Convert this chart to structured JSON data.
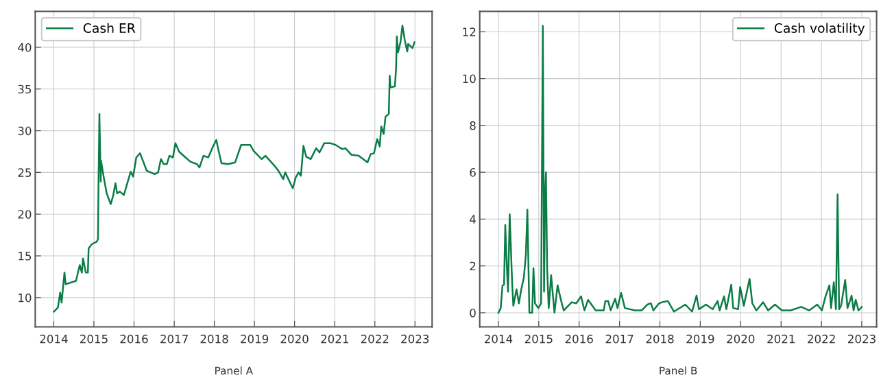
{
  "chart_data": [
    {
      "type": "line",
      "xlabel": "Panel A",
      "legend": "top left",
      "grid": true,
      "xlim": [
        "2013-07-16",
        "2023-06-06"
      ],
      "ylim": [
        6.5,
        44.3
      ],
      "xticks": [
        "2014",
        "2015",
        "2016",
        "2017",
        "2018",
        "2019",
        "2020",
        "2021",
        "2022",
        "2023"
      ],
      "yticks": [
        10,
        15,
        20,
        25,
        30,
        35,
        40
      ],
      "series": [
        {
          "name": "Cash ER",
          "color": "#0b7c46",
          "x": [
            "2014-01-01",
            "2014-02-07",
            "2014-02-28",
            "2014-03-13",
            "2014-04-08",
            "2014-04-19",
            "2014-07-22",
            "2014-08-25",
            "2014-09-13",
            "2014-09-24",
            "2014-10-19",
            "2014-11-07",
            "2014-11-14",
            "2014-12-13",
            "2015-01-26",
            "2015-02-07",
            "2015-02-12",
            "2015-02-20",
            "2015-03-04",
            "2015-03-07",
            "2015-03-29",
            "2015-04-27",
            "2015-06-03",
            "2015-06-25",
            "2015-07-16",
            "2015-07-31",
            "2015-08-25",
            "2015-10-01",
            "2015-11-14",
            "2015-12-02",
            "2015-12-24",
            "2016-01-22",
            "2016-02-25",
            "2016-04-26",
            "2016-07-07",
            "2016-08-07",
            "2016-09-02",
            "2016-09-27",
            "2016-10-26",
            "2016-11-18",
            "2016-12-20",
            "2017-01-12",
            "2017-02-14",
            "2017-04-13",
            "2017-05-27",
            "2017-07-27",
            "2017-08-19",
            "2017-09-24",
            "2017-11-07",
            "2017-12-16",
            "2018-01-19",
            "2018-02-07",
            "2018-03-07",
            "2018-05-08",
            "2018-07-09",
            "2018-09-02",
            "2018-11-24",
            "2018-12-24",
            "2019-03-07",
            "2019-04-12",
            "2019-07-09",
            "2019-08-07",
            "2019-09-20",
            "2019-10-08",
            "2019-12-16",
            "2020-01-12",
            "2020-02-07",
            "2020-02-28",
            "2020-03-22",
            "2020-04-16",
            "2020-05-27",
            "2020-07-16",
            "2020-08-15",
            "2020-09-27",
            "2020-11-24",
            "2021-01-08",
            "2021-03-10",
            "2021-04-08",
            "2021-06-03",
            "2021-08-07",
            "2021-10-26",
            "2021-11-24",
            "2021-12-24",
            "2022-01-22",
            "2022-02-14",
            "2022-02-28",
            "2022-03-22",
            "2022-04-08",
            "2022-05-08",
            "2022-05-16",
            "2022-05-23",
            "2022-07-02",
            "2022-07-13",
            "2022-07-20",
            "2022-07-31",
            "2022-08-22",
            "2022-09-09",
            "2022-10-01",
            "2022-10-23",
            "2022-10-31",
            "2022-12-09",
            "2022-12-28"
          ],
          "values": [
            8.3,
            8.8,
            10.6,
            9.4,
            13.0,
            11.6,
            12.0,
            13.9,
            13.0,
            14.7,
            13.0,
            13.0,
            15.9,
            16.4,
            16.7,
            17.0,
            23.8,
            32.0,
            23.9,
            26.4,
            24.6,
            22.5,
            21.2,
            22.2,
            23.7,
            22.5,
            22.7,
            22.3,
            24.3,
            25.1,
            24.5,
            26.8,
            27.3,
            25.2,
            24.8,
            25.0,
            26.6,
            26.0,
            26.0,
            27.0,
            26.8,
            28.5,
            27.5,
            26.8,
            26.3,
            26.0,
            25.6,
            27.0,
            26.8,
            28.0,
            28.9,
            27.7,
            26.1,
            26.0,
            26.2,
            28.3,
            28.3,
            27.6,
            26.6,
            27.0,
            25.7,
            25.2,
            24.2,
            25.0,
            23.1,
            24.4,
            25.0,
            24.6,
            28.2,
            26.9,
            26.6,
            27.9,
            27.4,
            28.5,
            28.5,
            28.3,
            27.8,
            27.9,
            27.1,
            27.0,
            26.2,
            27.2,
            27.3,
            29.0,
            28.1,
            30.5,
            29.6,
            31.7,
            32.0,
            36.6,
            35.2,
            35.3,
            37.4,
            41.3,
            39.4,
            40.6,
            42.6,
            40.8,
            39.5,
            40.4,
            39.9,
            40.6
          ]
        }
      ]
    },
    {
      "type": "line",
      "xlabel": "Panel B",
      "legend": "top right",
      "grid": true,
      "xlim": [
        "2013-07-16",
        "2023-05-15"
      ],
      "ylim": [
        -0.6,
        12.87
      ],
      "xticks": [
        "2014",
        "2015",
        "2016",
        "2017",
        "2018",
        "2019",
        "2020",
        "2021",
        "2022",
        "2023"
      ],
      "yticks": [
        0,
        2,
        4,
        6,
        8,
        10,
        12
      ],
      "series": [
        {
          "name": "Cash volatility",
          "color": "#0b7c46",
          "x": [
            "2014-01-01",
            "2014-01-22",
            "2014-02-07",
            "2014-02-21",
            "2014-03-04",
            "2014-03-18",
            "2014-03-29",
            "2014-04-13",
            "2014-05-05",
            "2014-05-16",
            "2014-06-14",
            "2014-07-05",
            "2014-07-27",
            "2014-08-19",
            "2014-09-06",
            "2014-09-20",
            "2014-10-08",
            "2014-11-03",
            "2014-11-14",
            "2014-11-28",
            "2014-12-28",
            "2015-01-22",
            "2015-02-07",
            "2015-02-18",
            "2015-02-28",
            "2015-03-07",
            "2015-03-18",
            "2015-04-01",
            "2015-04-23",
            "2015-05-23",
            "2015-06-20",
            "2015-07-23",
            "2015-08-15",
            "2015-10-26",
            "2015-12-06",
            "2016-01-19",
            "2016-02-18",
            "2016-03-22",
            "2016-05-30",
            "2016-08-11",
            "2016-08-25",
            "2016-09-20",
            "2016-10-12",
            "2016-11-22",
            "2016-12-13",
            "2017-01-15",
            "2017-02-18",
            "2017-05-19",
            "2017-07-20",
            "2017-09-09",
            "2017-10-12",
            "2017-11-03",
            "2017-12-24",
            "2018-01-22",
            "2018-03-14",
            "2018-05-08",
            "2018-08-19",
            "2018-10-19",
            "2018-11-28",
            "2018-12-20",
            "2019-02-21",
            "2019-04-23",
            "2019-06-07",
            "2019-06-25",
            "2019-08-04",
            "2019-08-25",
            "2019-10-08",
            "2019-10-26",
            "2019-12-09",
            "2019-12-28",
            "2020-01-30",
            "2020-03-22",
            "2020-04-16",
            "2020-05-23",
            "2020-07-23",
            "2020-09-06",
            "2020-11-07",
            "2021-01-08",
            "2021-03-29",
            "2021-07-02",
            "2021-09-13",
            "2021-11-24",
            "2022-01-05",
            "2022-02-07",
            "2022-03-14",
            "2022-03-29",
            "2022-04-23",
            "2022-05-12",
            "2022-05-27",
            "2022-06-10",
            "2022-06-28",
            "2022-08-04",
            "2022-08-25",
            "2022-10-01",
            "2022-10-19",
            "2022-11-07",
            "2022-12-02",
            "2023-01-01"
          ],
          "values": [
            0,
            0.2,
            1.17,
            1.2,
            3.75,
            2.0,
            0.9,
            4.2,
            1.3,
            0.3,
            1.0,
            0.4,
            1.0,
            1.5,
            2.45,
            4.4,
            0,
            0,
            1.9,
            0.4,
            0.2,
            0.4,
            12.25,
            0.9,
            5.25,
            6.0,
            1.85,
            0.2,
            1.6,
            0,
            1.17,
            0.5,
            0.1,
            0.45,
            0.4,
            0.7,
            0.1,
            0.55,
            0.1,
            0.1,
            0.5,
            0.5,
            0.1,
            0.6,
            0.2,
            0.85,
            0.2,
            0.1,
            0.1,
            0.35,
            0.4,
            0.1,
            0.4,
            0.45,
            0.5,
            0.05,
            0.35,
            0.05,
            0.73,
            0.15,
            0.35,
            0.15,
            0.5,
            0.1,
            0.7,
            0.15,
            1.2,
            0.2,
            0.15,
            1.1,
            0.3,
            1.45,
            0.4,
            0.1,
            0.45,
            0.1,
            0.35,
            0.1,
            0.1,
            0.25,
            0.1,
            0.35,
            0.1,
            0.7,
            1.17,
            0.2,
            1.3,
            0.15,
            5.05,
            0.15,
            0.3,
            1.4,
            0.2,
            0.73,
            0.1,
            0.55,
            0.1,
            0.25
          ]
        }
      ]
    }
  ]
}
